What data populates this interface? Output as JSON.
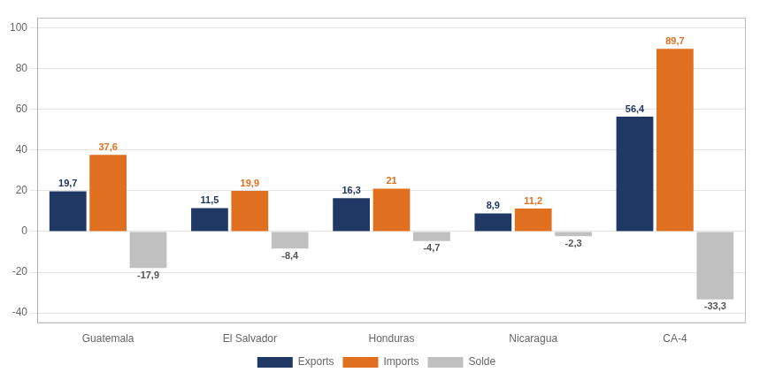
{
  "chart_data": {
    "type": "bar",
    "categories": [
      "Guatemala",
      "El Salvador",
      "Honduras",
      "Nicaragua",
      "CA-4"
    ],
    "series": [
      {
        "name": "Exports",
        "color": "#1F3864",
        "values": [
          19.7,
          11.5,
          16.3,
          8.9,
          56.4
        ],
        "value_labels": [
          "19,7",
          "11,5",
          "16,3",
          "8,9",
          "56,4"
        ]
      },
      {
        "name": "Imports",
        "color": "#E07020",
        "values": [
          37.6,
          19.9,
          21.0,
          11.2,
          89.7
        ],
        "value_labels": [
          "37,6",
          "19,9",
          "21",
          "11,2",
          "89,7"
        ]
      },
      {
        "name": "Solde",
        "color": "#C0C0C0",
        "values": [
          -17.9,
          -8.4,
          -4.7,
          -2.3,
          -33.3
        ],
        "value_labels": [
          "-17,9",
          "-8,4",
          "-4,7",
          "-2,3",
          "-33,3"
        ]
      }
    ],
    "ylim": [
      -45,
      105
    ],
    "yticks": [
      -40,
      -20,
      0,
      20,
      40,
      60,
      80,
      100
    ],
    "grid": true,
    "legend": "bottom",
    "data_labels": true
  }
}
